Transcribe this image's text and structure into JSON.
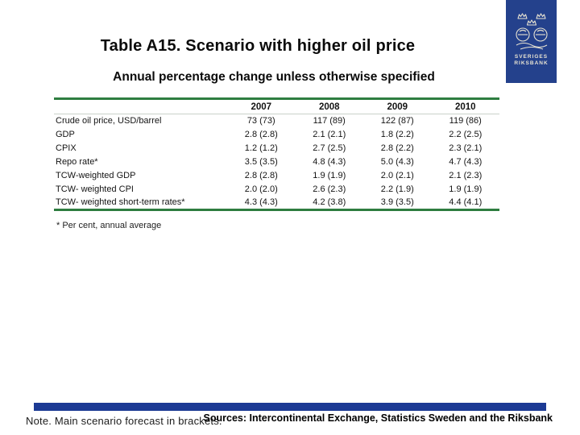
{
  "header": {
    "title": "Table A15. Scenario with higher oil price",
    "subtitle": "Annual percentage change unless otherwise specified"
  },
  "logo": {
    "line1": "SVERIGES",
    "line2": "RIKSBANK",
    "bg_color": "#24418C",
    "crest_color": "#E8E3D2"
  },
  "table": {
    "columns": [
      "",
      "2007",
      "2008",
      "2009",
      "2010"
    ],
    "rows": [
      {
        "label": "Crude oil price, USD/barrel",
        "values": [
          "73 (73)",
          "117 (89)",
          "122 (87)",
          "119 (86)"
        ]
      },
      {
        "label": "GDP",
        "values": [
          "2.8 (2.8)",
          "2.1 (2.1)",
          "1.8 (2.2)",
          "2.2 (2.5)"
        ]
      },
      {
        "label": "CPIX",
        "values": [
          "1.2 (1.2)",
          "2.7 (2.5)",
          "2.8 (2.2)",
          "2.3 (2.1)"
        ]
      },
      {
        "label": "Repo rate*",
        "values": [
          "3.5 (3.5)",
          "4.8 (4.3)",
          "5.0 (4.3)",
          "4.7 (4.3)"
        ]
      },
      {
        "label": "TCW-weighted GDP",
        "values": [
          "2.8 (2.8)",
          "1.9 (1.9)",
          "2.0 (2.1)",
          "2.1 (2.3)"
        ]
      },
      {
        "label": "TCW- weighted CPI",
        "values": [
          "2.0 (2.0)",
          "2.6 (2.3)",
          "2.2 (1.9)",
          "1.9 (1.9)"
        ]
      },
      {
        "label": "TCW- weighted short-term rates*",
        "values": [
          "4.3 (4.3)",
          "4.2 (3.8)",
          "3.9 (3.5)",
          "4.4 (4.1)"
        ]
      }
    ],
    "footnote": "* Per cent, annual average",
    "border_color": "#2E7D40"
  },
  "footer": {
    "note": "Note. Main scenario forecast in brackets.",
    "sources": "Sources: Intercontinental Exchange, Statistics Sweden and the Riksbank",
    "bar_color": "#1C3A94"
  }
}
